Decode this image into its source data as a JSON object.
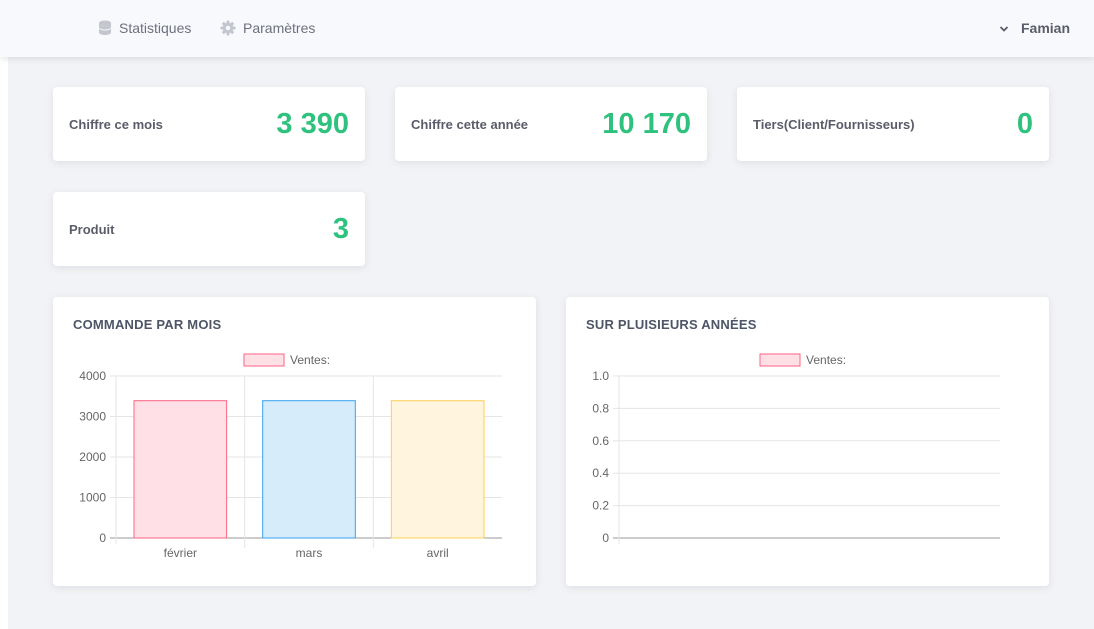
{
  "nav": {
    "items": [
      {
        "label": "Statistiques",
        "icon": "database-icon"
      },
      {
        "label": "Paramètres",
        "icon": "gear-icon"
      }
    ],
    "user": {
      "name": "Famian",
      "icon": "chevron-down-icon"
    }
  },
  "stats": [
    {
      "label": "Chiffre ce mois",
      "value": "3 390"
    },
    {
      "label": "Chiffre cette année",
      "value": "10 170"
    },
    {
      "label": "Tiers(Client/Fournisseurs)",
      "value": "0"
    },
    {
      "label": "Produit",
      "value": "3"
    }
  ],
  "colors": {
    "accent": "#2ec27e",
    "bar_fills": [
      "#ffe0e6",
      "#d7ecfb",
      "#fff4dd"
    ],
    "bar_strokes": [
      "#ff6384",
      "#36a2eb",
      "#ffce56"
    ]
  },
  "chart_data": [
    {
      "type": "bar",
      "title": "COMMANDE PAR MOIS",
      "legend": "Ventes:",
      "categories": [
        "février",
        "mars",
        "avril"
      ],
      "series": [
        {
          "name": "Ventes:",
          "values": [
            3390,
            3390,
            3390
          ]
        }
      ],
      "ylim": [
        0,
        4000
      ],
      "yticks": [
        "4000",
        "3000",
        "2000",
        "1000",
        "0"
      ],
      "grid": true,
      "legend_position": "top"
    },
    {
      "type": "bar",
      "title": "SUR PLUISIEURS ANNÉES",
      "legend": "Ventes:",
      "categories": [],
      "series": [
        {
          "name": "Ventes:",
          "values": []
        }
      ],
      "ylim": [
        0,
        1
      ],
      "yticks": [
        "1.0",
        "0.8",
        "0.6",
        "0.4",
        "0.2",
        "0"
      ],
      "grid": true,
      "legend_position": "top"
    }
  ]
}
